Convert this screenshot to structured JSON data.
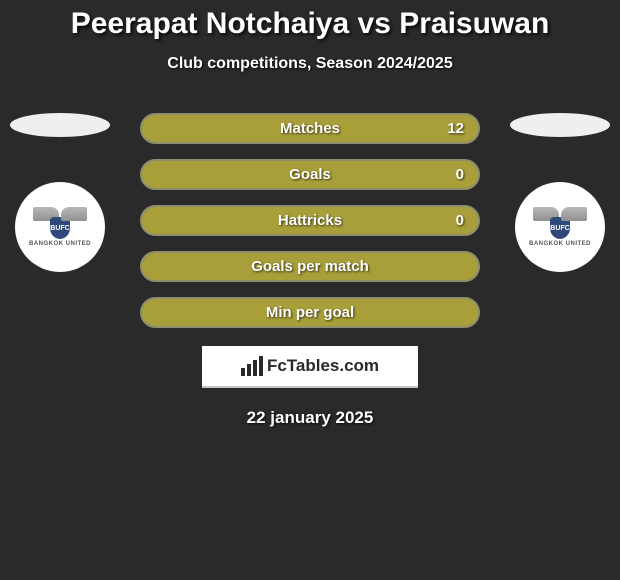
{
  "header": {
    "title": "Peerapat Notchaiya vs Praisuwan",
    "subtitle": "Club competitions, Season 2024/2025"
  },
  "stats": [
    {
      "label": "Matches",
      "value": "12"
    },
    {
      "label": "Goals",
      "value": "0"
    },
    {
      "label": "Hattricks",
      "value": "0"
    },
    {
      "label": "Goals per match",
      "value": ""
    },
    {
      "label": "Min per goal",
      "value": ""
    }
  ],
  "club_badge": {
    "shield_text": "BUFC",
    "name_text": "BANGKOK UNITED"
  },
  "brand": {
    "text": "FcTables.com"
  },
  "footer": {
    "date": "22 january 2025"
  },
  "colors": {
    "background": "#2a2a2a",
    "stat_bar_fill": "#a89f3a",
    "stat_bar_border": "#8e8e6f",
    "text": "#ffffff",
    "ellipse": "#efefef",
    "badge_bg": "#ffffff",
    "shield": "#2f4a7a"
  },
  "typography": {
    "title_fontsize": 30,
    "subtitle_fontsize": 16,
    "stat_label_fontsize": 15,
    "date_fontsize": 17,
    "brand_fontsize": 17
  }
}
